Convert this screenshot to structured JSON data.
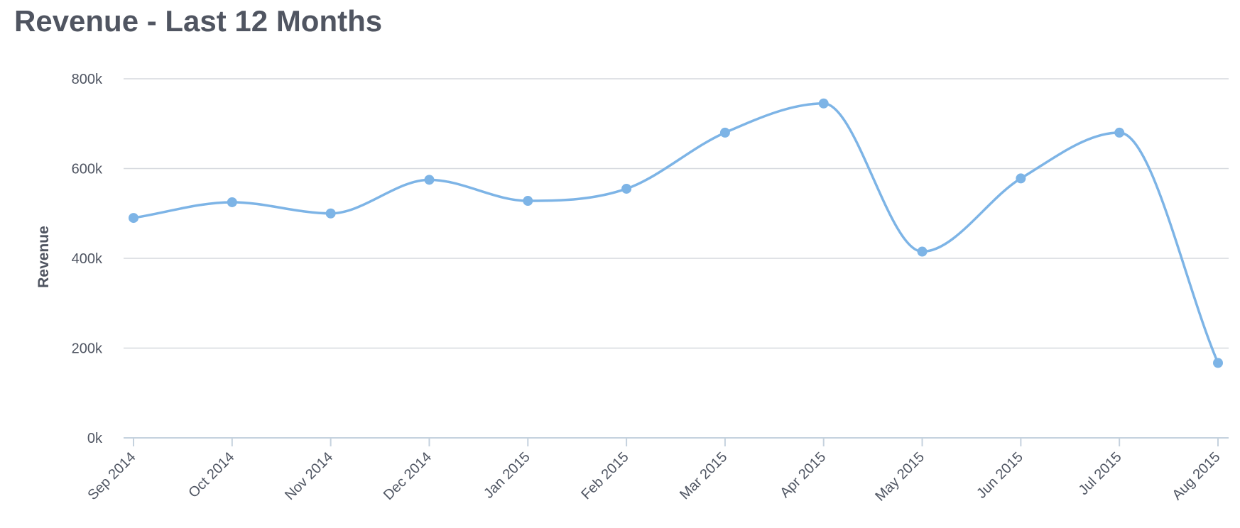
{
  "chart_data": {
    "type": "line",
    "title": "Revenue - Last 12 Months",
    "xlabel": "",
    "ylabel": "Revenue",
    "categories": [
      "Sep 2014",
      "Oct 2014",
      "Nov 2014",
      "Dec 2014",
      "Jan 2015",
      "Feb 2015",
      "Mar 2015",
      "Apr 2015",
      "May 2015",
      "Jun 2015",
      "Jul 2015",
      "Aug 2015"
    ],
    "series": [
      {
        "values": [
          490000,
          525000,
          500000,
          575000,
          528000,
          555000,
          680000,
          745000,
          415000,
          578000,
          680000,
          167000
        ]
      }
    ],
    "ylim": [
      0,
      800000
    ],
    "yticks": [
      0,
      200000,
      400000,
      600000,
      800000
    ],
    "ytick_labels": [
      "0k",
      "200k",
      "400k",
      "600k",
      "800k"
    ],
    "grid": true,
    "legend": "none",
    "colors": {
      "series": "#7db4e6",
      "grid": "#d6d9de",
      "axis": "#c5d2de",
      "text": "#4f5562"
    }
  }
}
